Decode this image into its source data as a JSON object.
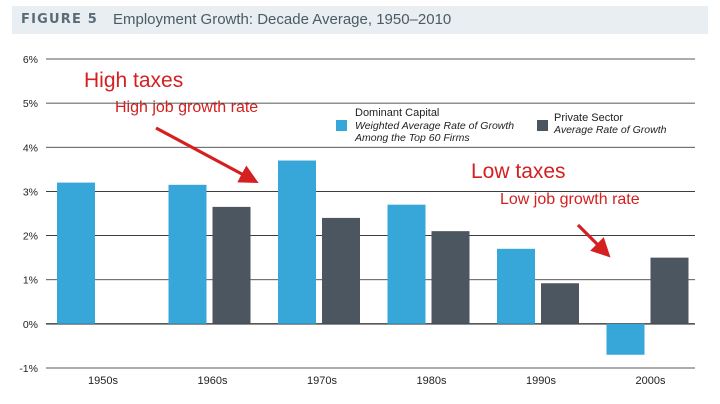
{
  "figure": {
    "label": "FIGURE 5",
    "title": "Employment Growth: Decade Average, 1950–2010"
  },
  "annotations": {
    "high_taxes": "High taxes",
    "high_growth": "High job growth rate",
    "low_taxes": "Low taxes",
    "low_growth": "Low job growth rate"
  },
  "legend": {
    "dominant": {
      "name": "Dominant Capital",
      "desc_line1": "Weighted Average Rate of Growth",
      "desc_line2": "Among the Top 60 Firms"
    },
    "private": {
      "name": "Private Sector",
      "desc_line1": "Average Rate of Growth"
    }
  },
  "colors": {
    "dominant": "#37a6d8",
    "private": "#4b5660",
    "annotation": "#d42020",
    "grid": "#222222"
  },
  "chart_data": {
    "type": "bar",
    "categories": [
      "1950s",
      "1960s",
      "1970s",
      "1980s",
      "1990s",
      "2000s"
    ],
    "series": [
      {
        "name": "Dominant Capital",
        "values": [
          3.2,
          3.15,
          3.7,
          2.7,
          1.7,
          -0.7
        ]
      },
      {
        "name": "Private Sector",
        "values": [
          null,
          2.65,
          2.4,
          2.1,
          0.92,
          1.5
        ]
      }
    ],
    "ylim": [
      -1,
      6
    ],
    "yticks": [
      -1,
      0,
      1,
      2,
      3,
      4,
      5,
      6
    ],
    "ytick_labels": [
      "-1%",
      "0%",
      "1%",
      "2%",
      "3%",
      "4%",
      "5%",
      "6%"
    ],
    "grid": true,
    "legend_position": "top-right"
  }
}
